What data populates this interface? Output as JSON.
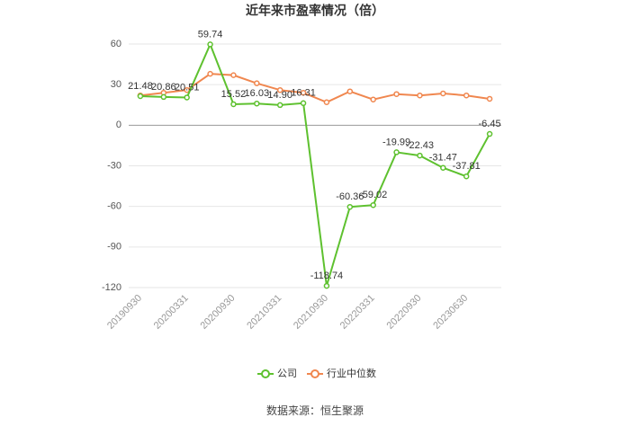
{
  "chart_data": {
    "type": "line",
    "title": "近年来市盈率情况（倍）",
    "categories": [
      "20190930",
      null,
      "20200331",
      null,
      "20200930",
      null,
      "20210331",
      null,
      "20210930",
      null,
      "20220331",
      null,
      "20220930",
      null,
      "20230630",
      null
    ],
    "series": [
      {
        "name": "公司",
        "color": "#5ec12f",
        "values": [
          21.48,
          20.86,
          20.51,
          59.74,
          15.52,
          16.03,
          14.9,
          16.31,
          -118.74,
          -60.36,
          -59.02,
          -19.99,
          -22.43,
          -31.47,
          -37.81,
          -6.45
        ],
        "value_labels": [
          "21.48",
          "20.86",
          "20.51",
          "59.74",
          "15.52",
          "16.03",
          "14.90",
          "16.31",
          "-118.74",
          "-60.36",
          "-59.02",
          "-19.99",
          "-22.43",
          "-31.47",
          "-37.81",
          "-6.45"
        ]
      },
      {
        "name": "行业中位数",
        "color": "#f0874f",
        "values": [
          22,
          24,
          26,
          38,
          37,
          31,
          26,
          24,
          17,
          25,
          19,
          23,
          22,
          23.5,
          22,
          19.5
        ]
      }
    ],
    "ylim": [
      -120,
      60
    ],
    "yticks": [
      -120,
      -90,
      -60,
      -30,
      0,
      30,
      60
    ],
    "grid": true,
    "source": "数据来源：恒生聚源"
  }
}
